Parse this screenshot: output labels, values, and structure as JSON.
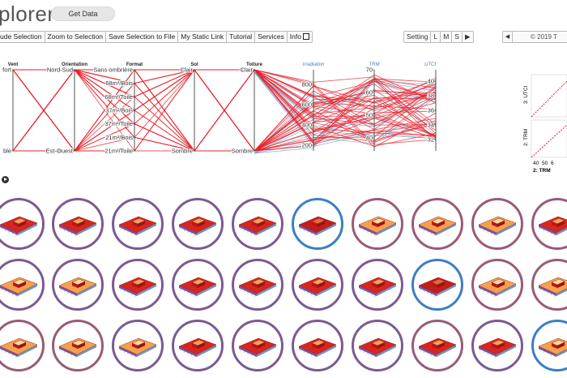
{
  "app": {
    "title": "plorer",
    "get_data": "Get Data"
  },
  "toolbar": {
    "items": [
      "ude Selection",
      "Zoom to Selection",
      "Save Selection to File",
      "My Static Link",
      "Tutorial",
      "Services",
      "Info"
    ]
  },
  "size_buttons": [
    "Setting",
    "L",
    "M",
    "S"
  ],
  "year_nav": {
    "prev": "◀",
    "year": "© 2019 T"
  },
  "colors": {
    "accent_red": "#e8202a",
    "accent_blue": "#6699cc",
    "circle_purple": "#7b5a92",
    "circle_blue": "#3b7fc4",
    "circle_mauve": "#9a5a78"
  },
  "chart_data": [
    {
      "type": "parallel-coordinates",
      "dimensions": [
        {
          "name": "Vent",
          "ticks": [
            "fort",
            "ble"
          ]
        },
        {
          "name": "Orientation",
          "ticks": [
            "Nord-Sud",
            "Est-Ouest"
          ]
        },
        {
          "name": "Format",
          "ticks": [
            "Sans ombrière",
            "68m²/Bois",
            "68m²/Toile",
            "37m²/Bois",
            "37m²/Toile",
            "21m²/Bois",
            "21m²/Toile"
          ]
        },
        {
          "name": "Sol",
          "ticks": [
            "Clair",
            "Sombre"
          ]
        },
        {
          "name": "Toiture",
          "ticks": [
            "Clair",
            "Sombre"
          ]
        },
        {
          "name": "Irradiation",
          "ticks": [
            "800",
            "600",
            "400",
            "200"
          ]
        },
        {
          "name": "TRM",
          "ticks": [
            "70",
            "60",
            "50",
            "40"
          ]
        },
        {
          "name": "UTCI",
          "ticks": [
            "40",
            "38",
            "36",
            "34",
            "32"
          ]
        }
      ]
    },
    {
      "type": "scatter",
      "panels": [
        {
          "ylabel": "3: UTCI"
        },
        {
          "ylabel": "2: TRM",
          "x_ticks": [
            "40",
            "50",
            "6"
          ],
          "xlabel": "2: TRM"
        }
      ]
    }
  ],
  "grid": {
    "rows": [
      [
        {
          "ring": "purple",
          "fill": "red"
        },
        {
          "ring": "purple",
          "fill": "red"
        },
        {
          "ring": "purple",
          "fill": "red"
        },
        {
          "ring": "purple",
          "fill": "red"
        },
        {
          "ring": "purple",
          "fill": "red"
        },
        {
          "ring": "blue",
          "fill": "darkred"
        },
        {
          "ring": "mauve",
          "fill": "orange"
        },
        {
          "ring": "mauve",
          "fill": "orange"
        },
        {
          "ring": "mauve",
          "fill": "orange"
        },
        {
          "ring": "mauve",
          "fill": "red"
        }
      ],
      [
        {
          "ring": "purple",
          "fill": "orange"
        },
        {
          "ring": "purple",
          "fill": "orange"
        },
        {
          "ring": "purple",
          "fill": "red"
        },
        {
          "ring": "purple",
          "fill": "red"
        },
        {
          "ring": "purple",
          "fill": "red"
        },
        {
          "ring": "purple",
          "fill": "red"
        },
        {
          "ring": "purple",
          "fill": "red"
        },
        {
          "ring": "blue",
          "fill": "darkred"
        },
        {
          "ring": "mauve",
          "fill": "orange"
        },
        {
          "ring": "mauve",
          "fill": "orange"
        }
      ],
      [
        {
          "ring": "mauve",
          "fill": "orange"
        },
        {
          "ring": "mauve",
          "fill": "orange"
        },
        {
          "ring": "purple",
          "fill": "orange"
        },
        {
          "ring": "purple",
          "fill": "red"
        },
        {
          "ring": "purple",
          "fill": "red"
        },
        {
          "ring": "purple",
          "fill": "red"
        },
        {
          "ring": "purple",
          "fill": "red"
        },
        {
          "ring": "mauve",
          "fill": "red"
        },
        {
          "ring": "purple",
          "fill": "red"
        },
        {
          "ring": "blue",
          "fill": "orange"
        }
      ]
    ]
  }
}
